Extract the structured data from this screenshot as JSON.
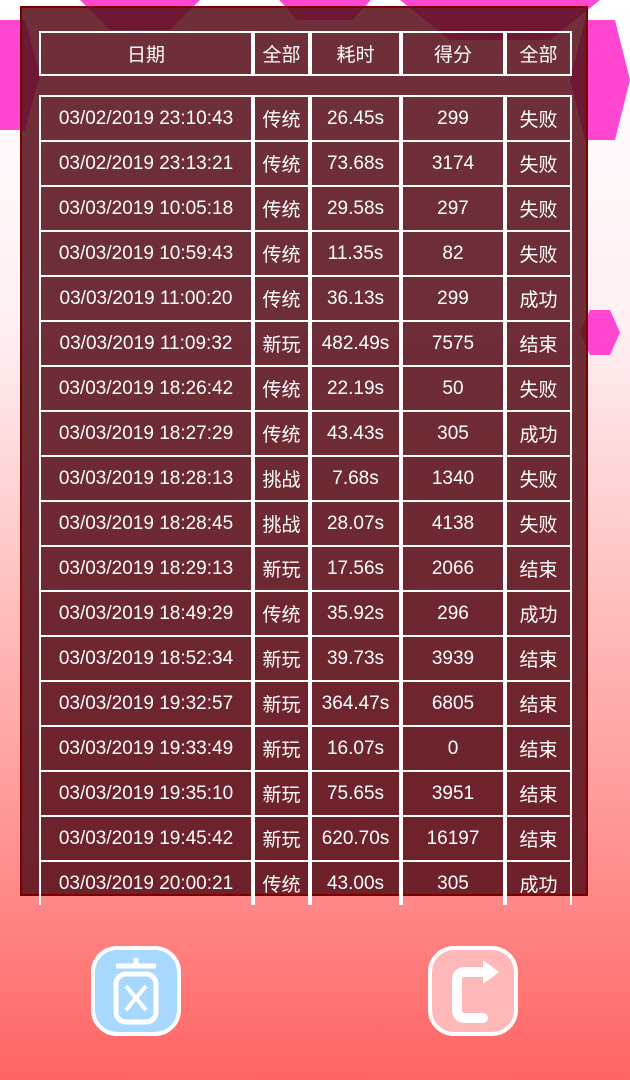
{
  "header": [
    "日期",
    "全部",
    "耗时",
    "得分",
    "全部"
  ],
  "rows": [
    [
      "03/02/2019 23:10:43",
      "传统",
      "26.45s",
      "299",
      "失败"
    ],
    [
      "03/02/2019 23:13:21",
      "传统",
      "73.68s",
      "3174",
      "失败"
    ],
    [
      "03/03/2019 10:05:18",
      "传统",
      "29.58s",
      "297",
      "失败"
    ],
    [
      "03/03/2019 10:59:43",
      "传统",
      "11.35s",
      "82",
      "失败"
    ],
    [
      "03/03/2019 11:00:20",
      "传统",
      "36.13s",
      "299",
      "成功"
    ],
    [
      "03/03/2019 11:09:32",
      "新玩",
      "482.49s",
      "7575",
      "结束"
    ],
    [
      "03/03/2019 18:26:42",
      "传统",
      "22.19s",
      "50",
      "失败"
    ],
    [
      "03/03/2019 18:27:29",
      "传统",
      "43.43s",
      "305",
      "成功"
    ],
    [
      "03/03/2019 18:28:13",
      "挑战",
      "7.68s",
      "1340",
      "失败"
    ],
    [
      "03/03/2019 18:28:45",
      "挑战",
      "28.07s",
      "4138",
      "失败"
    ],
    [
      "03/03/2019 18:29:13",
      "新玩",
      "17.56s",
      "2066",
      "结束"
    ],
    [
      "03/03/2019 18:49:29",
      "传统",
      "35.92s",
      "296",
      "成功"
    ],
    [
      "03/03/2019 18:52:34",
      "新玩",
      "39.73s",
      "3939",
      "结束"
    ],
    [
      "03/03/2019 19:32:57",
      "新玩",
      "364.47s",
      "6805",
      "结束"
    ],
    [
      "03/03/2019 19:33:49",
      "新玩",
      "16.07s",
      "0",
      "结束"
    ],
    [
      "03/03/2019 19:35:10",
      "新玩",
      "75.65s",
      "3951",
      "结束"
    ],
    [
      "03/03/2019 19:45:42",
      "新玩",
      "620.70s",
      "16197",
      "结束"
    ],
    [
      "03/03/2019 20:00:21",
      "传统",
      "43.00s",
      "305",
      "成功"
    ]
  ],
  "buttons": {
    "clear_icon": "trash-x-icon",
    "back_icon": "return-arrow-icon",
    "clear_color": "#a8d8ff",
    "back_color": "#ffb8b8"
  }
}
